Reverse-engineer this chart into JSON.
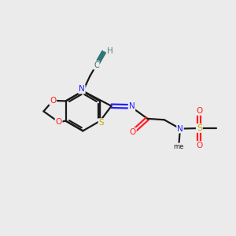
{
  "bg_color": "#ebebeb",
  "bond_color": "#1a1a1a",
  "atom_colors": {
    "N": "#2020ff",
    "O": "#ff2020",
    "S_thio": "#ccaa00",
    "S_sulfo": "#ccaa00",
    "C_prop": "#2a7070",
    "H": "#5a8080"
  },
  "lw": 1.6,
  "figsize": [
    3.0,
    3.0
  ],
  "dpi": 100,
  "xlim": [
    0,
    10
  ],
  "ylim": [
    0,
    10
  ]
}
